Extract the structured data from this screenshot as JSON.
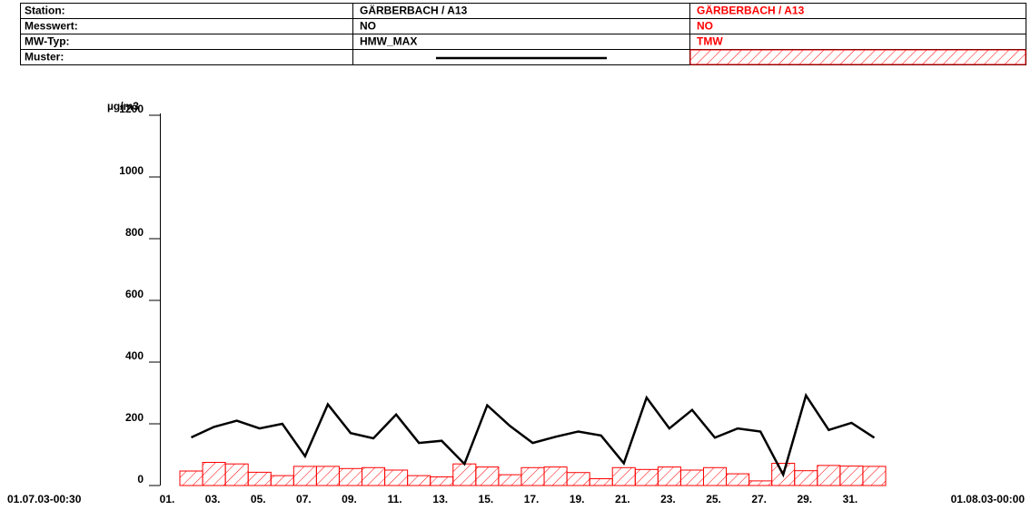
{
  "table": {
    "rows": [
      [
        "Station:",
        "GÄRBERBACH / A13",
        "GÄRBERBACH / A13"
      ],
      [
        "Messwert:",
        "NO",
        "NO"
      ],
      [
        "MW-Typ:",
        "HMW_MAX",
        "TMW"
      ],
      [
        "Muster:"
      ]
    ]
  },
  "chart_data": {
    "type": "combo",
    "y_label": "µg/m3",
    "start_label": "01.07.03-00:30",
    "end_label": "01.08.03-00:00",
    "categories": [
      "01.",
      null,
      "03.",
      null,
      "05.",
      null,
      "07.",
      null,
      "09.",
      null,
      "11.",
      null,
      "13.",
      null,
      "15.",
      null,
      "17.",
      null,
      "19.",
      null,
      "21.",
      null,
      "23.",
      null,
      "25.",
      null,
      "27.",
      null,
      "29.",
      null,
      "31."
    ],
    "series": [
      {
        "type": "bar",
        "color": "#ff0000",
        "values": [
          47,
          75,
          70,
          43,
          32,
          62,
          62,
          55,
          58,
          50,
          32,
          28,
          70,
          60,
          35,
          58,
          60,
          42,
          22,
          58,
          52,
          60,
          50,
          58,
          38,
          15,
          72,
          48,
          65,
          63,
          62
        ]
      },
      {
        "type": "line",
        "color": "#000000",
        "values": [
          156,
          190,
          210,
          185,
          200,
          95,
          263,
          170,
          153,
          230,
          138,
          145,
          70,
          260,
          193,
          138,
          158,
          175,
          162,
          72,
          285,
          185,
          245,
          155,
          185,
          175,
          35,
          292,
          180,
          203,
          155
        ]
      }
    ],
    "ylim": [
      0,
      1200
    ],
    "yticks": [
      0,
      200,
      400,
      600,
      800,
      1000,
      1200
    ]
  }
}
